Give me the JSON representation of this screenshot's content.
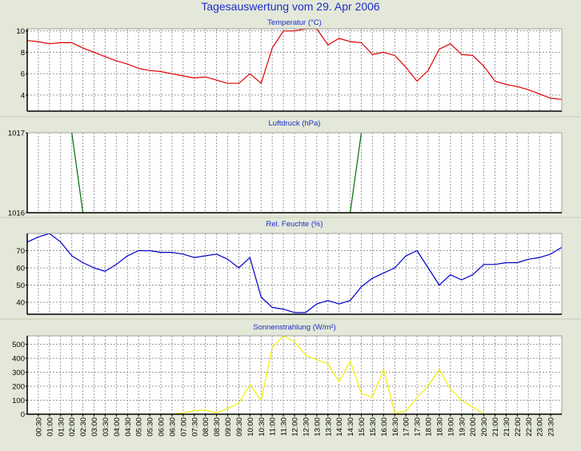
{
  "page_title": "Tagesauswertung vom 29. Apr 2006",
  "colors": {
    "background": "#e3e8d9",
    "plot_background": "#ffffff",
    "grid": "#9a9a9a",
    "title_text": "#1e2ec8",
    "axis_text": "#000000"
  },
  "x_time_labels": [
    "00:30",
    "01:00",
    "01:30",
    "02:00",
    "02:30",
    "03:00",
    "03:30",
    "04:00",
    "04:30",
    "05:00",
    "05:30",
    "06:00",
    "06:30",
    "07:00",
    "07:30",
    "08:00",
    "08:30",
    "09:00",
    "09:30",
    "10:00",
    "10:30",
    "11:00",
    "11:30",
    "12:00",
    "12:30",
    "13:00",
    "13:30",
    "14:00",
    "14:30",
    "15:00",
    "15:30",
    "16:00",
    "16:30",
    "17:00",
    "17:30",
    "18:00",
    "18:30",
    "19:00",
    "19:30",
    "20:00",
    "20:30",
    "21:00",
    "21:30",
    "22:00",
    "22:30",
    "23:00",
    "23:30"
  ],
  "chart_data": [
    {
      "type": "line",
      "title": "Temperatur (°C)",
      "xlabel": "",
      "ylabel": "",
      "ylim": [
        2.5,
        10.2
      ],
      "yticks": [
        4,
        6,
        8,
        10
      ],
      "grid": true,
      "series": [
        {
          "color": "#e00000",
          "x": [
            0,
            0.5,
            1,
            1.5,
            2,
            2.5,
            3,
            3.5,
            4,
            4.5,
            5,
            5.5,
            6,
            6.5,
            7,
            7.5,
            8,
            8.5,
            9,
            9.5,
            10,
            10.5,
            11,
            11.5,
            12,
            12.5,
            13,
            13.5,
            14,
            14.5,
            15,
            15.5,
            16,
            16.5,
            17,
            17.5,
            18,
            18.5,
            19,
            19.5,
            20,
            20.5,
            21,
            21.5,
            22,
            22.5,
            23,
            23.5,
            24
          ],
          "values": [
            9.1,
            9.0,
            8.8,
            8.9,
            8.9,
            8.4,
            8.0,
            7.6,
            7.2,
            6.9,
            6.5,
            6.3,
            6.2,
            6.0,
            5.8,
            5.6,
            5.7,
            5.4,
            5.1,
            5.1,
            6.0,
            5.1,
            8.4,
            10.0,
            10.0,
            10.2,
            10.2,
            8.7,
            9.3,
            9.0,
            8.9,
            7.8,
            8.0,
            7.7,
            6.6,
            5.3,
            6.3,
            8.3,
            8.8,
            7.8,
            7.7,
            6.7,
            5.3,
            5.0,
            4.8,
            4.5,
            4.1,
            3.7,
            3.6
          ]
        }
      ]
    },
    {
      "type": "line",
      "title": "Luftdruck (hPa)",
      "xlabel": "",
      "ylabel": "",
      "ylim": [
        1016,
        1017
      ],
      "yticks": [
        1016,
        1017
      ],
      "grid": true,
      "series": [
        {
          "color": "#007000",
          "segments": [
            {
              "x": [
                2.0,
                2.5
              ],
              "values": [
                1017,
                1016
              ]
            },
            {
              "x": [
                14.5,
                15.0
              ],
              "values": [
                1016,
                1017
              ]
            }
          ]
        }
      ]
    },
    {
      "type": "line",
      "title": "Rel. Feuchte (%)",
      "xlabel": "",
      "ylabel": "",
      "ylim": [
        33,
        80
      ],
      "yticks": [
        40,
        50,
        60,
        70
      ],
      "grid": true,
      "series": [
        {
          "color": "#0000cc",
          "x": [
            0,
            0.5,
            1,
            1.5,
            2,
            2.5,
            3,
            3.5,
            4,
            4.5,
            5,
            5.5,
            6,
            6.5,
            7,
            7.5,
            8,
            8.5,
            9,
            9.5,
            10,
            10.5,
            11,
            11.5,
            12,
            12.5,
            13,
            13.5,
            14,
            14.5,
            15,
            15.5,
            16,
            16.5,
            17,
            17.5,
            18,
            18.5,
            19,
            19.5,
            20,
            20.5,
            21,
            21.5,
            22,
            22.5,
            23,
            23.5,
            24
          ],
          "values": [
            75,
            78,
            80,
            75,
            67,
            63,
            60,
            58,
            62,
            67,
            70,
            70,
            69,
            69,
            68,
            66,
            67,
            68,
            65,
            60,
            66,
            43,
            37,
            36,
            34,
            34,
            39,
            41,
            39,
            41,
            49,
            54,
            57,
            60,
            67,
            70,
            60,
            50,
            56,
            53,
            56,
            62,
            62,
            63,
            63,
            65,
            66,
            68,
            72
          ]
        }
      ]
    },
    {
      "type": "line",
      "title": "Sonnenstrahlung (W/m²)",
      "xlabel": "",
      "ylabel": "",
      "ylim": [
        0,
        560
      ],
      "yticks": [
        0,
        100,
        200,
        300,
        400,
        500
      ],
      "grid": true,
      "series": [
        {
          "color": "#f0f000",
          "x": [
            0,
            0.5,
            1,
            1.5,
            2,
            2.5,
            3,
            3.5,
            4,
            4.5,
            5,
            5.5,
            6,
            6.5,
            7,
            7.5,
            8,
            8.5,
            9,
            9.5,
            10,
            10.5,
            11,
            11.5,
            12,
            12.5,
            13,
            13.5,
            14,
            14.5,
            15,
            15.5,
            16,
            16.5,
            17,
            17.5,
            18,
            18.5,
            19,
            19.5,
            20,
            20.5,
            21,
            21.5,
            22,
            22.5,
            23,
            23.5,
            24
          ],
          "values": [
            0,
            0,
            0,
            0,
            0,
            0,
            0,
            0,
            0,
            0,
            0,
            0,
            0,
            0,
            10,
            25,
            30,
            10,
            40,
            80,
            210,
            100,
            480,
            560,
            520,
            420,
            390,
            360,
            230,
            380,
            150,
            120,
            320,
            10,
            20,
            120,
            200,
            320,
            180,
            100,
            50,
            0,
            0,
            0,
            0,
            0,
            0,
            0,
            0
          ]
        }
      ]
    }
  ]
}
